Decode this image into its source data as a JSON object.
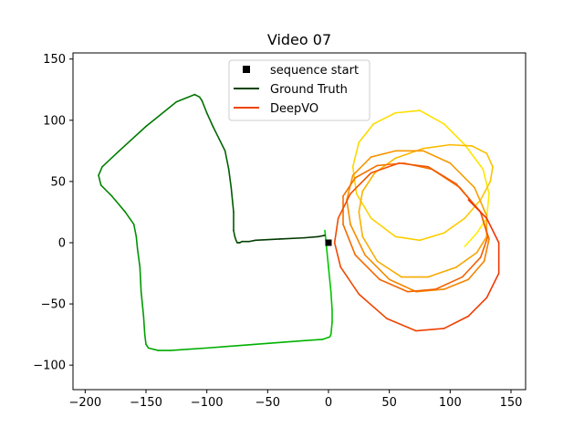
{
  "chart_data": {
    "type": "line",
    "title": "Video 07",
    "xlabel": "",
    "ylabel": "",
    "xlim": [
      -210,
      162
    ],
    "ylim": [
      -120,
      155
    ],
    "xticks": [
      -200,
      -150,
      -100,
      -50,
      0,
      50,
      100,
      150
    ],
    "yticks": [
      -100,
      -50,
      0,
      50,
      100,
      150
    ],
    "xtick_labels": [
      "−200",
      "−150",
      "−100",
      "−50",
      "0",
      "50",
      "100",
      "150"
    ],
    "ytick_labels": [
      "−100",
      "−50",
      "0",
      "50",
      "100",
      "150"
    ],
    "grid": false,
    "legend_position": "top-center",
    "legend": [
      {
        "label": "sequence start",
        "marker": "square",
        "color": "#000000"
      },
      {
        "label": "Ground Truth",
        "color": "#004400"
      },
      {
        "label": "DeepVO",
        "color": "#ee4400"
      }
    ],
    "start_point": {
      "x": 0,
      "y": 0
    },
    "series": [
      {
        "name": "Ground Truth",
        "color_start": "#00cc00",
        "color_end": "#003300",
        "x": [
          -3,
          -2,
          0,
          2,
          3,
          3,
          2,
          1,
          -5,
          -20,
          -60,
          -100,
          -130,
          -140,
          -148,
          -150,
          -151,
          -152,
          -154,
          -155,
          -157,
          -158,
          -160,
          -167,
          -178,
          -187,
          -189,
          -186,
          -172,
          -150,
          -125,
          -110,
          -106,
          -104,
          -100,
          -95,
          -90,
          -85,
          -82,
          -80,
          -78,
          -78,
          -77,
          -76,
          -75,
          -74,
          -73,
          -71,
          -68,
          -65,
          -60,
          -40,
          -20,
          -8,
          -3
        ],
        "y": [
          10,
          0,
          -20,
          -40,
          -55,
          -65,
          -75,
          -77,
          -79,
          -80,
          -83,
          -86,
          -88,
          -88,
          -86,
          -83,
          -75,
          -60,
          -40,
          -20,
          -5,
          5,
          15,
          25,
          38,
          47,
          55,
          62,
          75,
          95,
          115,
          121,
          119,
          116,
          106,
          95,
          85,
          75,
          60,
          45,
          25,
          10,
          5,
          2,
          0,
          0,
          0,
          1,
          1,
          1,
          2,
          3,
          4,
          5,
          6
        ]
      },
      {
        "name": "DeepVO",
        "color_start": "#ffee00",
        "color_end": "#ee3300",
        "x": [
          112,
          122,
          130,
          132,
          127,
          112,
          95,
          75,
          55,
          37,
          25,
          20,
          23,
          35,
          55,
          75,
          95,
          112,
          125,
          133,
          135,
          130,
          118,
          100,
          78,
          55,
          38,
          28,
          25,
          28,
          40,
          60,
          82,
          105,
          122,
          130,
          130,
          120,
          100,
          78,
          55,
          35,
          20,
          15,
          18,
          30,
          50,
          72,
          95,
          115,
          128,
          132,
          125,
          108,
          85,
          62,
          40,
          22,
          12,
          12,
          22,
          42,
          65,
          88,
          110,
          125,
          131,
          125,
          105,
          82,
          58,
          35,
          18,
          8,
          5,
          10,
          25,
          48,
          72,
          95,
          115,
          130,
          140,
          140,
          130,
          115
        ],
        "y": [
          -3,
          8,
          20,
          40,
          60,
          80,
          97,
          108,
          106,
          97,
          82,
          62,
          40,
          20,
          5,
          2,
          8,
          20,
          35,
          50,
          62,
          73,
          79,
          80,
          77,
          69,
          57,
          42,
          25,
          5,
          -15,
          -28,
          -28,
          -20,
          -8,
          5,
          22,
          45,
          65,
          75,
          75,
          70,
          55,
          35,
          15,
          -10,
          -30,
          -40,
          -38,
          -30,
          -15,
          3,
          25,
          45,
          60,
          65,
          63,
          53,
          38,
          15,
          -10,
          -30,
          -40,
          -38,
          -28,
          -12,
          5,
          25,
          48,
          62,
          65,
          57,
          40,
          20,
          0,
          -20,
          -42,
          -62,
          -72,
          -70,
          -60,
          -45,
          -25,
          0,
          20,
          35
        ]
      }
    ]
  }
}
